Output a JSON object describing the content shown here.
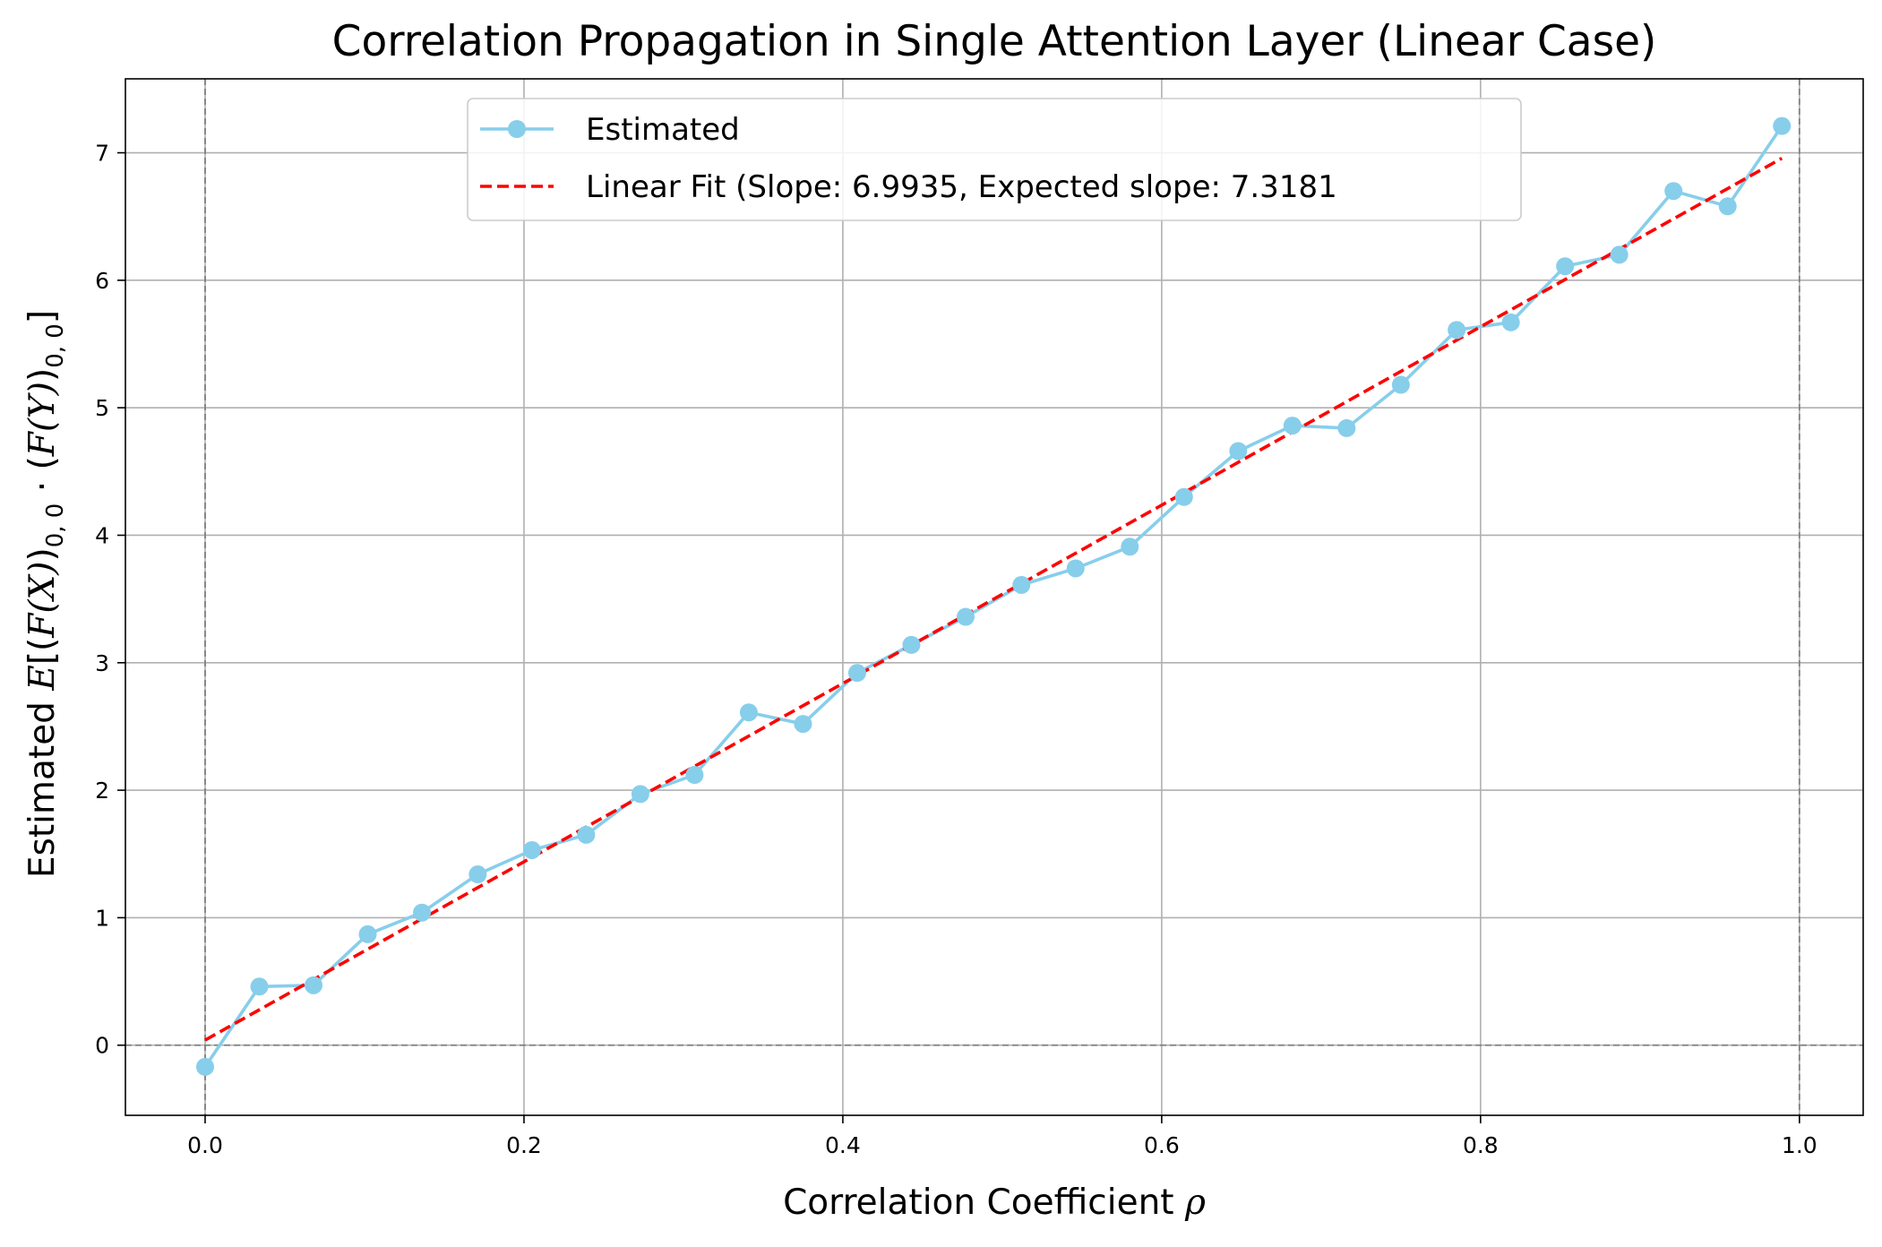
{
  "chart_data": {
    "type": "line",
    "title": "Correlation Propagation in Single Attention Layer (Linear Case)",
    "xlabel": "Correlation Coefficient ρ",
    "xlabel_text": "Correlation Coefficient ",
    "xlabel_symbol": "ρ",
    "ylabel": "Estimated E[(F(X))0,0 · (F(Y))0,0]",
    "ylabel_text": "Estimated ",
    "ylabel_math": {
      "E": "E",
      "open": "[(",
      "FX": "F",
      "X": "(X)",
      "close1": ")",
      "sub": "0, 0",
      "dot": " · (",
      "FY": "F",
      "Y": "(Y)",
      "close2": ")",
      "sub2": "0, 0",
      "end": "]"
    },
    "xlim": [
      -0.05,
      1.04
    ],
    "ylim": [
      -0.55,
      7.58
    ],
    "xticks": [
      0.0,
      0.2,
      0.4,
      0.6,
      0.8,
      1.0
    ],
    "xtick_labels": [
      "0.0",
      "0.2",
      "0.4",
      "0.6",
      "0.8",
      "1.0"
    ],
    "yticks": [
      0,
      1,
      2,
      3,
      4,
      5,
      6,
      7
    ],
    "ytick_labels": [
      "0",
      "1",
      "2",
      "3",
      "4",
      "5",
      "6",
      "7"
    ],
    "grid": true,
    "legend_position": "top-center",
    "reference_lines": {
      "horizontal": [
        0
      ],
      "vertical": [
        0,
        1
      ]
    },
    "series": [
      {
        "name": "Estimated",
        "style": "line-with-markers",
        "color": "#87CEEB",
        "x": [
          0.0,
          0.034,
          0.068,
          0.102,
          0.136,
          0.171,
          0.205,
          0.239,
          0.273,
          0.307,
          0.341,
          0.375,
          0.409,
          0.443,
          0.477,
          0.512,
          0.546,
          0.58,
          0.614,
          0.648,
          0.682,
          0.716,
          0.75,
          0.785,
          0.819,
          0.853,
          0.887,
          0.921,
          0.955,
          0.989
        ],
        "y": [
          -0.17,
          0.46,
          0.47,
          0.87,
          1.04,
          1.34,
          1.53,
          1.65,
          1.97,
          2.12,
          2.61,
          2.52,
          2.92,
          3.14,
          3.36,
          3.61,
          3.74,
          3.91,
          4.3,
          4.66,
          4.86,
          4.84,
          5.18,
          5.61,
          5.67,
          6.11,
          6.2,
          6.7,
          6.58,
          7.21
        ]
      },
      {
        "name": "Linear Fit (Slope: 6.9935, Expected slope: 7.3181",
        "style": "dashed",
        "color": "#FF0000",
        "slope": 6.9935,
        "intercept": 0.04,
        "x": [
          0.0,
          0.989
        ],
        "y": [
          0.04,
          6.957
        ]
      }
    ]
  },
  "colors": {
    "grid": "#B0B0B0",
    "reference": "#808080",
    "estimated": "#87CEEB",
    "fit": "#FF0000",
    "axes": "#000000"
  }
}
